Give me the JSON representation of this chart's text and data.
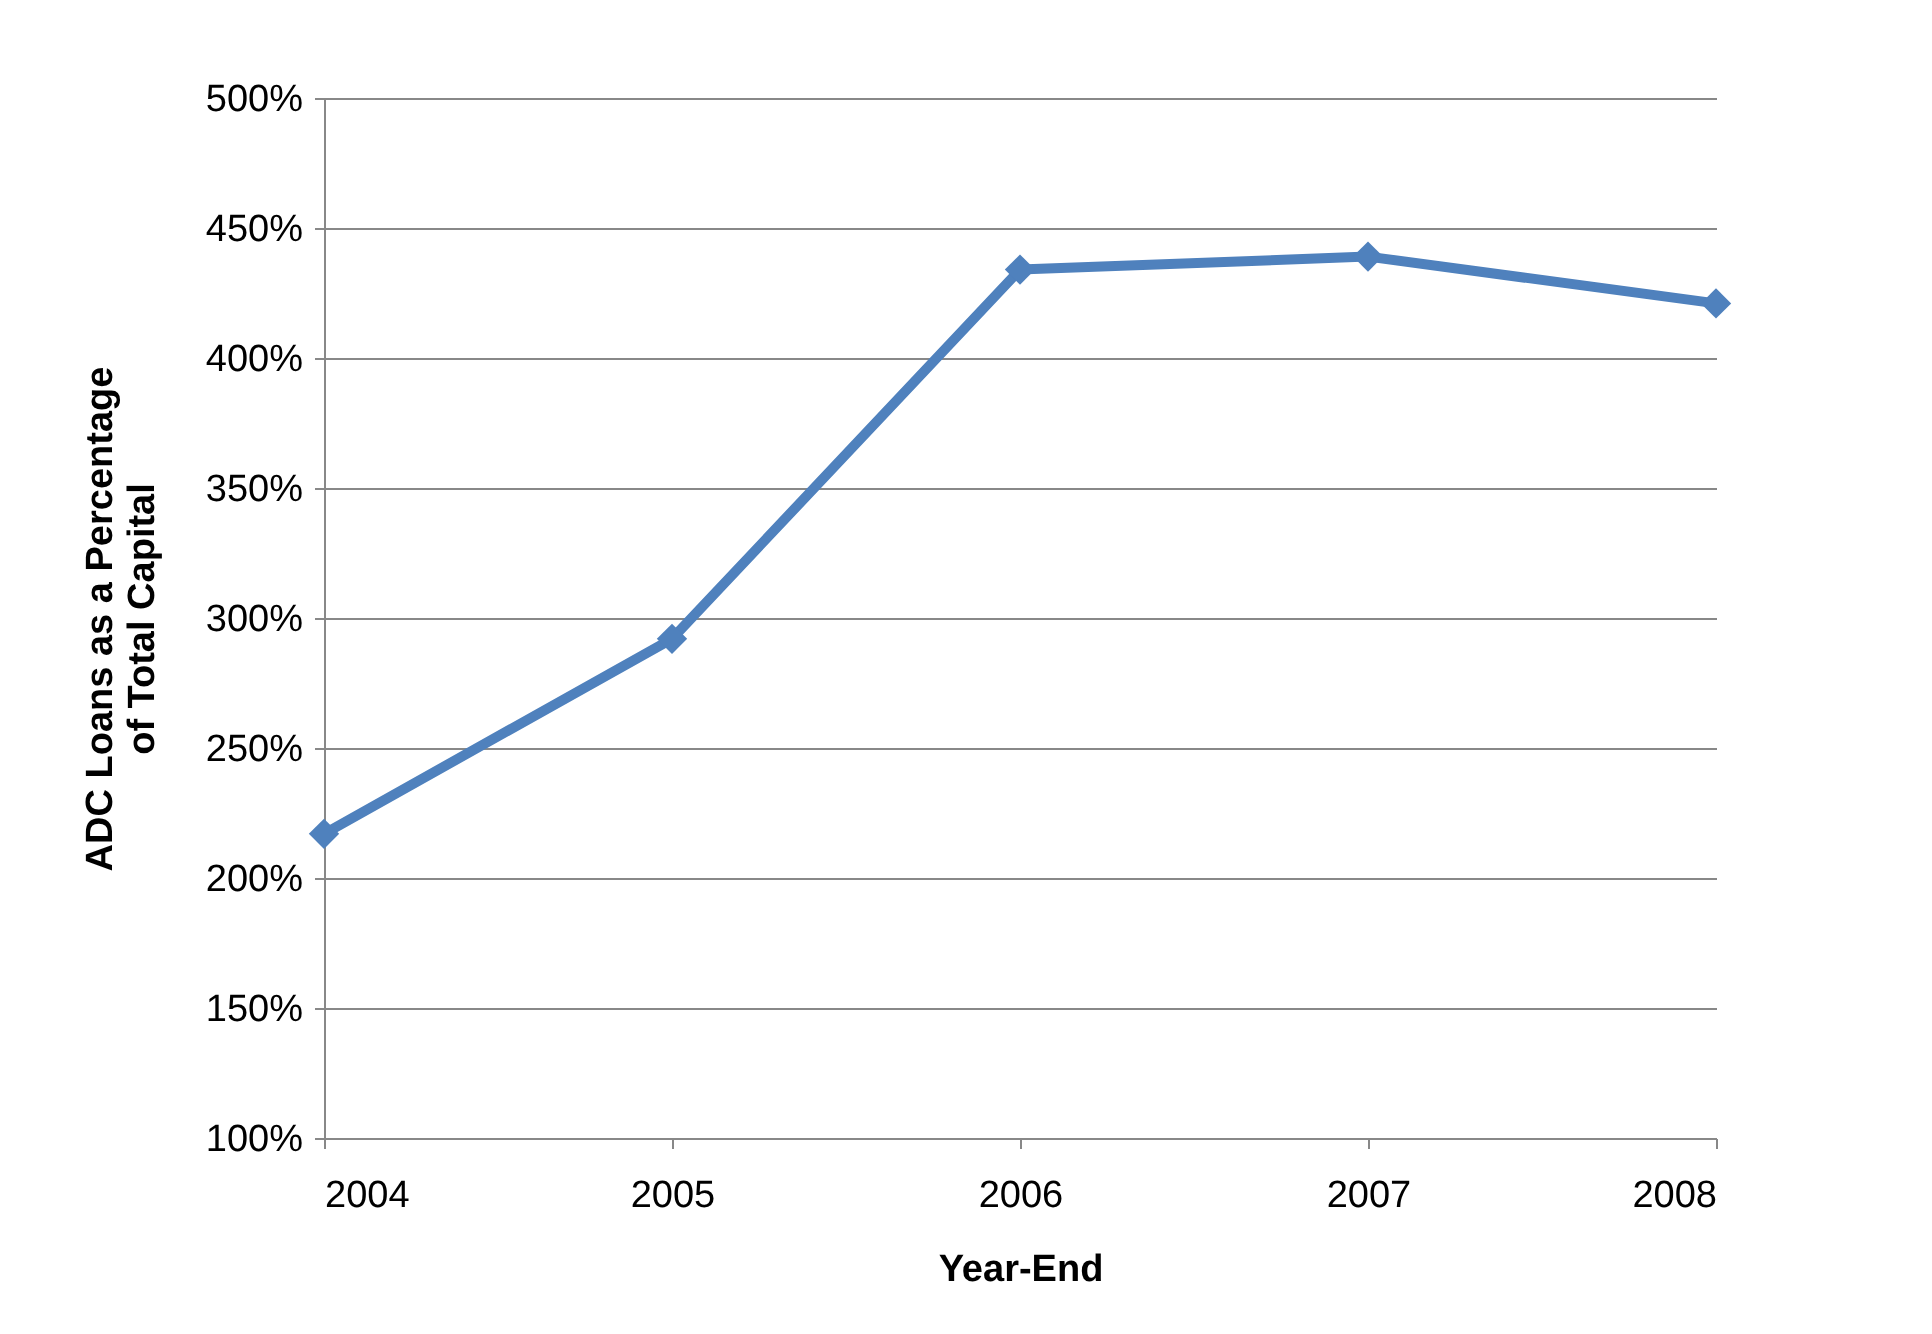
{
  "chart_data": {
    "type": "line",
    "xlabel": "Year-End",
    "ylabel": "ADC Loans as a Percentage of Total Capital",
    "x": [
      2004,
      2005,
      2006,
      2007,
      2008
    ],
    "series": [
      {
        "color": "#4f81bd",
        "values": [
          217,
          292,
          434,
          439,
          421
        ]
      }
    ],
    "xlim": [
      2004,
      2008
    ],
    "xticks": [
      2004,
      2005,
      2006,
      2007,
      2008
    ],
    "ylim": [
      100,
      500
    ],
    "yticks": [
      {
        "value": 100,
        "label": "100%"
      },
      {
        "value": 150,
        "label": "150%"
      },
      {
        "value": 200,
        "label": "200%"
      },
      {
        "value": 250,
        "label": "250%"
      },
      {
        "value": 300,
        "label": "300%"
      },
      {
        "value": 350,
        "label": "350%"
      },
      {
        "value": 400,
        "label": "400%"
      },
      {
        "value": 450,
        "label": "450%"
      },
      {
        "value": 500,
        "label": "500%"
      }
    ],
    "grid": "y",
    "marker": "diamond",
    "line_style": "solid",
    "legend": false
  }
}
